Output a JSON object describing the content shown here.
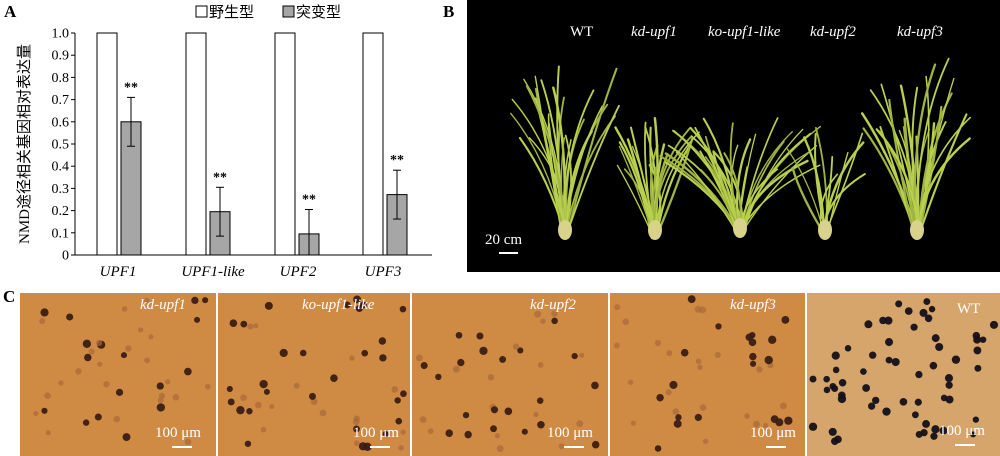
{
  "panels": {
    "a": "A",
    "b": "B",
    "c": "C"
  },
  "chart_data": {
    "type": "bar",
    "categories": [
      "UPF1",
      "UPF1-like",
      "UPF2",
      "UPF3"
    ],
    "series": [
      {
        "name": "野生型",
        "values": [
          1.0,
          1.0,
          1.0,
          1.0
        ],
        "color": "#ffffff"
      },
      {
        "name": "突变型",
        "values": [
          0.6,
          0.195,
          0.095,
          0.272
        ],
        "errors": [
          0.11,
          0.11,
          0.11,
          0.11
        ],
        "color": "#a6a6a6"
      }
    ],
    "significance": [
      "**",
      "**",
      "**",
      "**"
    ],
    "ylabel": "NMD途径相关基因相对表达量",
    "yticks": [
      "0",
      "0.1",
      "0.2",
      "0.3",
      "0.4",
      "0.5",
      "0.6",
      "0.7",
      "0.8",
      "0.9",
      "1.0"
    ],
    "ylim": [
      0,
      1.0
    ],
    "legend_placement": "top"
  },
  "plants": {
    "labels": [
      "WT",
      "kd-upf1",
      "ko-upf1-like",
      "kd-upf2",
      "kd-upf3"
    ],
    "scale": "20 cm"
  },
  "micrographs": [
    {
      "label": "kd-upf1",
      "scale": "100 μm"
    },
    {
      "label": "ko-upf1-like",
      "scale": "100 μm"
    },
    {
      "label": "kd-upf2",
      "scale": "100 μm"
    },
    {
      "label": "kd-upf3",
      "scale": "100 μm"
    },
    {
      "label": "WT",
      "scale": "100 μm"
    }
  ],
  "colors": {
    "stain_bg": "#cf8a43",
    "wt_bg": "#d6a56c",
    "plant_green": "#b9cf4e"
  }
}
